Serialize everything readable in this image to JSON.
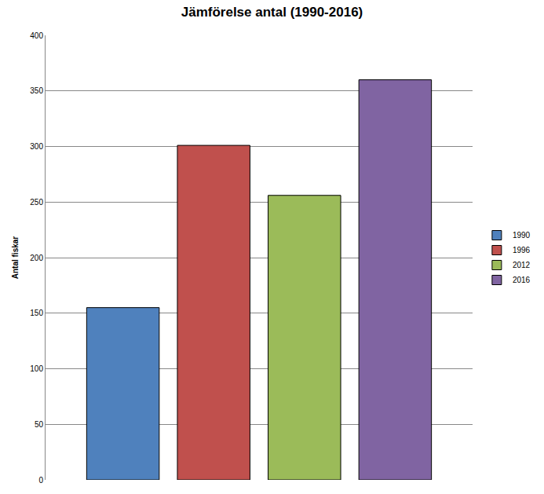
{
  "chart_data": {
    "type": "bar",
    "title": "Jämförelse antal (1990-2016)",
    "y_label": "Antal fiskar",
    "categories": [
      null
    ],
    "series": [
      {
        "name": "1990",
        "color": "#4f81bd",
        "values": [
          155
        ]
      },
      {
        "name": "1996",
        "color": "#c0504d",
        "values": [
          301
        ]
      },
      {
        "name": "2012",
        "color": "#9bbb59",
        "values": [
          256
        ]
      },
      {
        "name": "2016",
        "color": "#8064a2",
        "values": [
          360
        ]
      }
    ],
    "ylim": [
      0,
      400
    ],
    "yticks": [
      0,
      50,
      100,
      150,
      200,
      250,
      300,
      350,
      400
    ],
    "grid": true,
    "legend": "right",
    "tick_labels": "y"
  }
}
